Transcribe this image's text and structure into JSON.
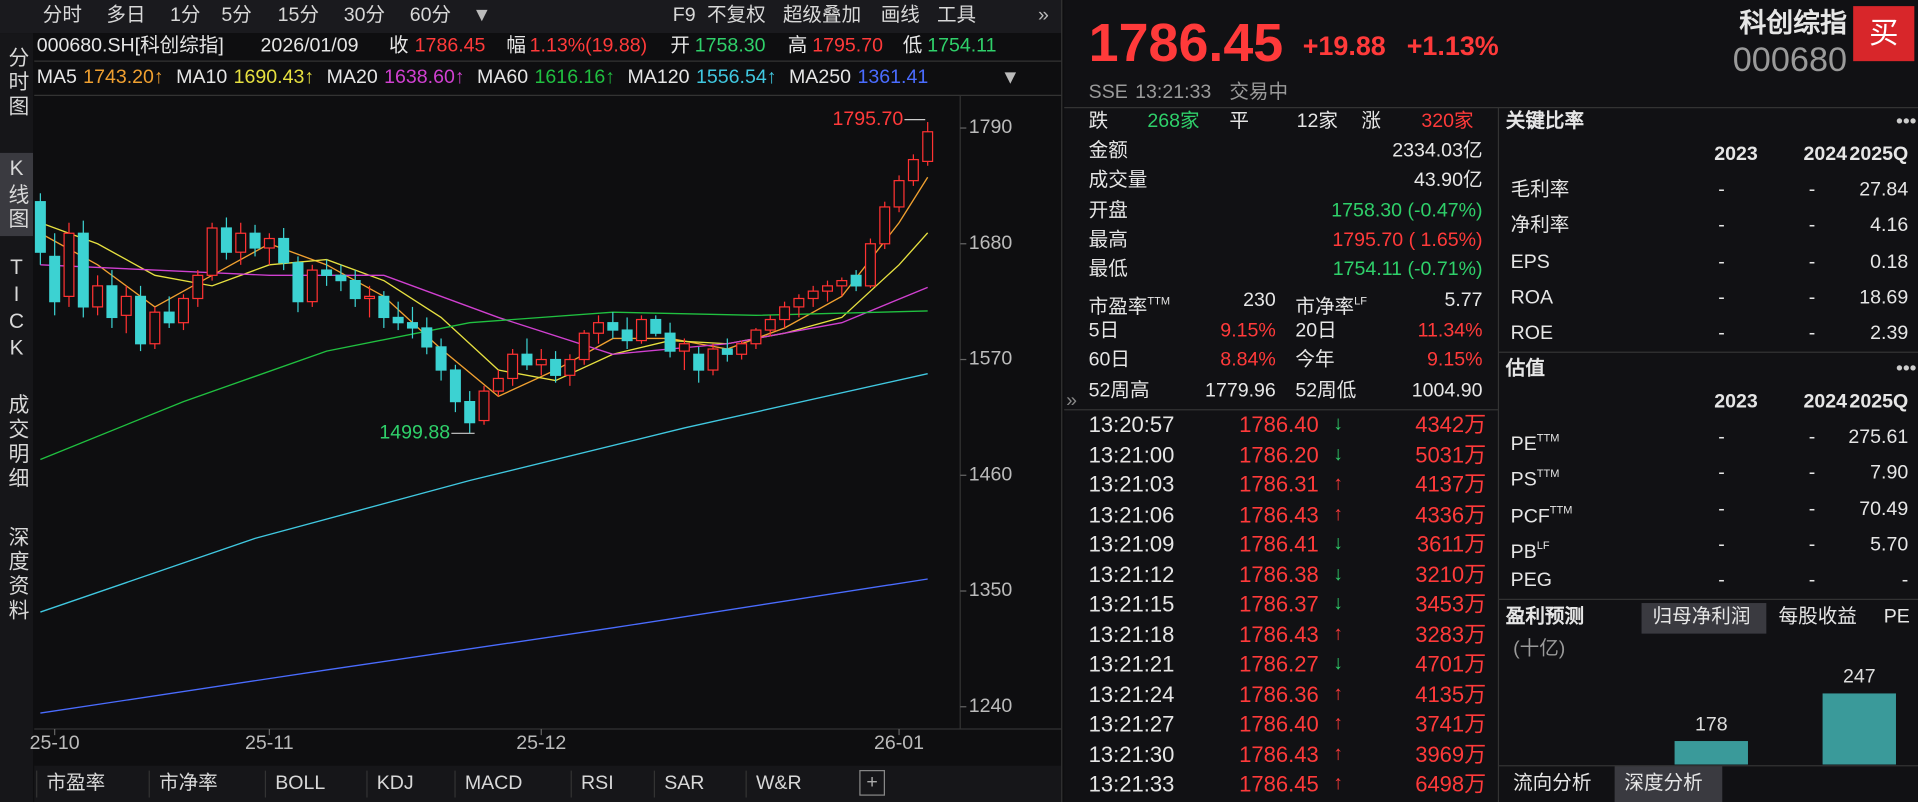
{
  "toolbar": {
    "periods": [
      "分时",
      "多日",
      "1分",
      "5分",
      "15分",
      "30分",
      "60分"
    ],
    "tools": [
      "F9",
      "不复权",
      "超级叠加",
      "画线",
      "工具"
    ]
  },
  "side_tabs": [
    "分时图",
    "K线图",
    "TICK",
    "成交明细",
    "深度资料"
  ],
  "info": {
    "code": "000680.SH[科创综指]",
    "date": "2026/01/09",
    "close_label": "收",
    "close": "1786.45",
    "change_label": "幅",
    "change": "1.13%(19.88)",
    "open_label": "开",
    "open": "1758.30",
    "high_label": "高",
    "high": "1795.70",
    "low_label": "低",
    "low": "1754.11"
  },
  "chart_data": {
    "type": "candlestick",
    "up_color": "#ff3232",
    "down_color": "#3cd2d2",
    "categories": [
      null,
      "25-10",
      null,
      null,
      null,
      null,
      null,
      null,
      null,
      null,
      null,
      null,
      null,
      null,
      null,
      null,
      "25-11",
      null,
      null,
      null,
      null,
      null,
      null,
      null,
      null,
      null,
      null,
      null,
      null,
      null,
      null,
      null,
      null,
      null,
      null,
      "25-12",
      null,
      null,
      null,
      null,
      null,
      null,
      null,
      null,
      null,
      null,
      null,
      null,
      null,
      null,
      null,
      null,
      null,
      null,
      null,
      null,
      null,
      null,
      null,
      null,
      "26-01",
      null,
      null
    ],
    "open": [
      1720,
      1668,
      1630,
      1690,
      1620,
      1640,
      1612,
      1630,
      1585,
      1615,
      1605,
      1628,
      1650,
      1695,
      1672,
      1690,
      1676,
      1685,
      1662,
      1625,
      1655,
      1650,
      1645,
      1628,
      1630,
      1610,
      1605,
      1600,
      1582,
      1560,
      1530,
      1512,
      1540,
      1552,
      1575,
      1565,
      1570,
      1555,
      1570,
      1595,
      1605,
      1598,
      1588,
      1608,
      1595,
      1578,
      1575,
      1560,
      1580,
      1575,
      1585,
      1598,
      1608,
      1620,
      1628,
      1635,
      1640,
      1650,
      1640,
      1680,
      1715,
      1740,
      1758.3
    ],
    "high": [
      1728,
      1690,
      1700,
      1702,
      1650,
      1655,
      1640,
      1640,
      1620,
      1630,
      1632,
      1655,
      1700,
      1705,
      1700,
      1698,
      1690,
      1695,
      1668,
      1660,
      1665,
      1660,
      1655,
      1640,
      1635,
      1625,
      1620,
      1610,
      1590,
      1565,
      1540,
      1545,
      1560,
      1580,
      1590,
      1580,
      1578,
      1575,
      1598,
      1612,
      1615,
      1610,
      1612,
      1612,
      1605,
      1590,
      1582,
      1585,
      1590,
      1588,
      1600,
      1612,
      1625,
      1632,
      1640,
      1645,
      1648,
      1655,
      1685,
      1720,
      1745,
      1765,
      1795.7
    ],
    "low": [
      1660,
      1612,
      1620,
      1610,
      1612,
      1600,
      1595,
      1578,
      1580,
      1600,
      1598,
      1620,
      1645,
      1665,
      1660,
      1668,
      1660,
      1655,
      1615,
      1620,
      1640,
      1635,
      1620,
      1610,
      1600,
      1598,
      1590,
      1575,
      1550,
      1520,
      1499.88,
      1508,
      1535,
      1545,
      1560,
      1555,
      1548,
      1545,
      1565,
      1585,
      1590,
      1580,
      1585,
      1592,
      1572,
      1560,
      1548,
      1555,
      1568,
      1570,
      1580,
      1592,
      1600,
      1610,
      1620,
      1625,
      1630,
      1635,
      1638,
      1675,
      1710,
      1735,
      1754.11
    ],
    "close": [
      1672,
      1625,
      1690,
      1620,
      1640,
      1610,
      1630,
      1585,
      1615,
      1605,
      1628,
      1650,
      1695,
      1672,
      1690,
      1676,
      1685,
      1662,
      1625,
      1655,
      1650,
      1645,
      1628,
      1630,
      1610,
      1605,
      1600,
      1582,
      1560,
      1530,
      1510,
      1540,
      1552,
      1575,
      1565,
      1570,
      1555,
      1570,
      1595,
      1605,
      1598,
      1588,
      1608,
      1595,
      1578,
      1585,
      1560,
      1580,
      1575,
      1585,
      1598,
      1608,
      1620,
      1628,
      1635,
      1640,
      1645,
      1640,
      1680,
      1715,
      1740,
      1760,
      1786.45
    ],
    "ylim": [
      1220,
      1821
    ],
    "yticks": [
      1240,
      1350,
      1460,
      1570,
      1680,
      1790
    ],
    "high_label": "1795.70",
    "low_label": "1499.88",
    "ma_lines": [
      {
        "name": "MA5",
        "label": "1743.20↑",
        "color": "#f0a030",
        "x": [
          0,
          4,
          8,
          12,
          16,
          20,
          24,
          28,
          32,
          36,
          40,
          44,
          48,
          52,
          56,
          60,
          62
        ],
        "values": [
          1690,
          1660,
          1620,
          1650,
          1680,
          1660,
          1630,
          1580,
          1535,
          1560,
          1590,
          1590,
          1580,
          1600,
          1630,
          1700,
          1743.2
        ]
      },
      {
        "name": "MA10",
        "label": "1690.43↑",
        "color": "#e6e040",
        "x": [
          0,
          4,
          8,
          12,
          16,
          20,
          24,
          28,
          32,
          36,
          40,
          44,
          48,
          52,
          56,
          60,
          62
        ],
        "values": [
          1700,
          1680,
          1650,
          1640,
          1660,
          1665,
          1645,
          1610,
          1560,
          1550,
          1575,
          1588,
          1585,
          1595,
          1610,
          1660,
          1690.43
        ]
      },
      {
        "name": "MA20",
        "label": "1638.60↑",
        "color": "#d040d0",
        "x": [
          0,
          8,
          16,
          24,
          32,
          40,
          48,
          56,
          62
        ],
        "values": [
          1660,
          1655,
          1650,
          1650,
          1610,
          1575,
          1585,
          1605,
          1638.6
        ]
      },
      {
        "name": "MA60",
        "label": "1616.16↑",
        "color": "#20c040",
        "x": [
          0,
          10,
          20,
          30,
          40,
          50,
          62
        ],
        "values": [
          1475,
          1530,
          1578,
          1605,
          1615,
          1612,
          1616.16
        ]
      },
      {
        "name": "MA120",
        "label": "1556.54↑",
        "color": "#40c8e0",
        "x": [
          0,
          15,
          30,
          45,
          62
        ],
        "values": [
          1330,
          1400,
          1455,
          1505,
          1556.54
        ]
      },
      {
        "name": "MA250",
        "label": "1361.41",
        "color": "#4a6cff",
        "x": [
          0,
          20,
          40,
          62
        ],
        "values": [
          1234,
          1275,
          1315,
          1361.41
        ]
      }
    ]
  },
  "indicator_tabs": [
    "市盈率",
    "市净率",
    "BOLL",
    "KDJ",
    "MACD",
    "RSI",
    "SAR",
    "W&R"
  ],
  "quote": {
    "price": "1786.45",
    "change": "+19.88",
    "change_pct": "+1.13%",
    "name": "科创综指",
    "code": "000680",
    "buy": "买",
    "exchange": "SSE",
    "time": "13:21:33",
    "status": "交易中"
  },
  "breadth": {
    "down_label": "跌",
    "down": "268家",
    "flat_label": "平",
    "flat": "12家",
    "up_label": "涨",
    "up": "320家"
  },
  "stats": [
    {
      "label": "金额",
      "value": "2334.03亿"
    },
    {
      "label": "成交量",
      "value": "43.90亿"
    },
    {
      "label": "开盘",
      "value": "1758.30 (-0.47%)",
      "tone": "down"
    },
    {
      "label": "最高",
      "value": "1795.70 ( 1.65%)",
      "tone": "up"
    },
    {
      "label": "最低",
      "value": "1754.11 (-0.71%)",
      "tone": "down"
    }
  ],
  "metrics": [
    [
      {
        "label": "市盈率",
        "sup": "TTM",
        "value": "230"
      },
      {
        "label": "市净率",
        "sup": "LF",
        "value": "5.77"
      }
    ],
    [
      {
        "label": "5日",
        "value": "9.15%",
        "tone": "up"
      },
      {
        "label": "20日",
        "value": "11.34%",
        "tone": "up"
      }
    ],
    [
      {
        "label": "60日",
        "value": "8.84%",
        "tone": "up"
      },
      {
        "label": "今年",
        "value": "9.15%",
        "tone": "up"
      }
    ],
    [
      {
        "label": "52周高",
        "value": "1779.96"
      },
      {
        "label": "52周低",
        "value": "1004.90"
      }
    ]
  ],
  "ticks": [
    {
      "time": "13:20:57",
      "price": "1786.40",
      "dir": "down",
      "amount": "4342万"
    },
    {
      "time": "13:21:00",
      "price": "1786.20",
      "dir": "down",
      "amount": "5031万"
    },
    {
      "time": "13:21:03",
      "price": "1786.31",
      "dir": "up",
      "amount": "4137万"
    },
    {
      "time": "13:21:06",
      "price": "1786.43",
      "dir": "up",
      "amount": "4336万"
    },
    {
      "time": "13:21:09",
      "price": "1786.41",
      "dir": "down",
      "amount": "3611万"
    },
    {
      "time": "13:21:12",
      "price": "1786.38",
      "dir": "down",
      "amount": "3210万"
    },
    {
      "time": "13:21:15",
      "price": "1786.37",
      "dir": "down",
      "amount": "3453万"
    },
    {
      "time": "13:21:18",
      "price": "1786.43",
      "dir": "up",
      "amount": "3283万"
    },
    {
      "time": "13:21:21",
      "price": "1786.27",
      "dir": "down",
      "amount": "4701万"
    },
    {
      "time": "13:21:24",
      "price": "1786.36",
      "dir": "up",
      "amount": "4135万"
    },
    {
      "time": "13:21:27",
      "price": "1786.40",
      "dir": "up",
      "amount": "3741万"
    },
    {
      "time": "13:21:30",
      "price": "1786.43",
      "dir": "up",
      "amount": "3969万"
    },
    {
      "time": "13:21:33",
      "price": "1786.45",
      "dir": "up",
      "amount": "6498万"
    }
  ],
  "ratios": {
    "title": "关键比率",
    "years": [
      "2023",
      "2024",
      "2025Q"
    ],
    "rows": [
      {
        "label": "毛利率",
        "cells": [
          "-",
          "-",
          "27.84"
        ]
      },
      {
        "label": "净利率",
        "cells": [
          "-",
          "-",
          "4.16"
        ]
      },
      {
        "label": "EPS",
        "cells": [
          "-",
          "-",
          "0.18"
        ]
      },
      {
        "label": "ROA",
        "cells": [
          "-",
          "-",
          "18.69"
        ]
      },
      {
        "label": "ROE",
        "cells": [
          "-",
          "-",
          "2.39"
        ]
      }
    ]
  },
  "valuation": {
    "title": "估值",
    "years": [
      "2023",
      "2024",
      "2025Q"
    ],
    "rows": [
      {
        "label": "PE",
        "sup": "TTM",
        "cells": [
          "-",
          "-",
          "275.61"
        ]
      },
      {
        "label": "PS",
        "sup": "TTM",
        "cells": [
          "-",
          "-",
          "7.90"
        ]
      },
      {
        "label": "PCF",
        "sup": "TTM",
        "cells": [
          "-",
          "-",
          "70.49"
        ]
      },
      {
        "label": "PB",
        "sup": "LF",
        "cells": [
          "-",
          "-",
          "5.70"
        ]
      },
      {
        "label": "PEG",
        "cells": [
          "-",
          "-",
          "-"
        ]
      }
    ]
  },
  "forecast": {
    "title": "盈利预测",
    "tabs": [
      "归母净利润",
      "每股收益",
      "PE"
    ],
    "unit": "(十亿)",
    "values": [
      178,
      247
    ],
    "ylim": [
      144,
      300
    ],
    "color": "#3a9a9a"
  },
  "bottom_tabs": [
    "流向分析",
    "深度分析"
  ]
}
